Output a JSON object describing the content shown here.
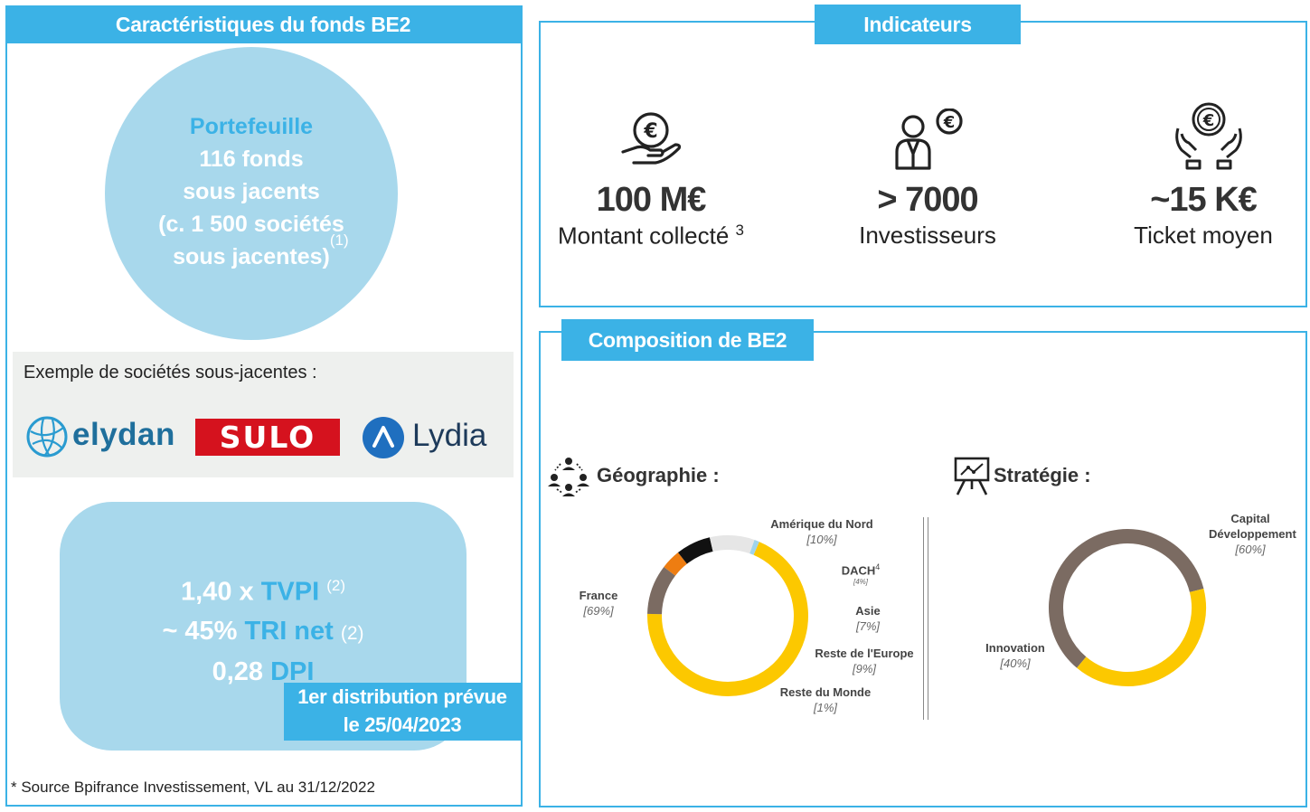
{
  "left": {
    "title": "Caractéristiques du fonds BE2",
    "portfolio": {
      "heading": "Portefeuille",
      "line1": "116 fonds",
      "line2": "sous jacents",
      "line3": "(c. 1 500 sociétés",
      "line4": "sous jacentes)",
      "note": "(1)"
    },
    "examples_label": "Exemple de sociétés sous-jacentes :",
    "logos": [
      "elydan",
      "SULO",
      "Lydia"
    ],
    "metrics": [
      {
        "value": "1,40 x ",
        "name": "TVPI",
        "note": "(2)"
      },
      {
        "value": "~ 45% ",
        "name": "TRI net",
        "note": "(2)"
      },
      {
        "value": "0,28 ",
        "name": "DPI",
        "note": ""
      }
    ],
    "distribution": {
      "line1": "1er distribution prévue",
      "line2": "le 25/04/2023"
    },
    "footnote": "* Source Bpifrance Investissement, VL au 31/12/2022"
  },
  "indicators": {
    "title": "Indicateurs",
    "items": [
      {
        "icon": "euro-hand-icon",
        "value": "100 M€",
        "label": "Montant collecté",
        "note": "3"
      },
      {
        "icon": "investor-euro-icon",
        "value": "> 7000",
        "label": "Investisseurs",
        "note": ""
      },
      {
        "icon": "hands-euro-icon",
        "value": "~15 K€",
        "label": "Ticket moyen",
        "note": ""
      }
    ]
  },
  "composition": {
    "title": "Composition de BE2",
    "geo_title": "Géographie :",
    "strat_title": "Stratégie :"
  },
  "chart_data": [
    {
      "type": "pie",
      "title": "Géographie :",
      "categories": [
        "France",
        "Amérique du Nord",
        "DACH",
        "Asie",
        "Reste de l'Europe",
        "Reste du Monde"
      ],
      "values": [
        69,
        10,
        4,
        7,
        9,
        1
      ],
      "value_labels": [
        "[69%]",
        "[10%]",
        "[4%]",
        "[7%]",
        "[9%]",
        "[1%]"
      ],
      "notes": {
        "DACH": "4"
      },
      "colors": [
        "#fcc800",
        "#7b6b62",
        "#ee7d11",
        "#111111",
        "#e6e6e6",
        "#9fd3ea"
      ]
    },
    {
      "type": "pie",
      "title": "Stratégie :",
      "categories": [
        "Capital Développement",
        "Innovation"
      ],
      "values": [
        60,
        40
      ],
      "value_labels": [
        "[60%]",
        "[40%]"
      ],
      "colors": [
        "#7b6b62",
        "#fcc800"
      ]
    }
  ],
  "colors": {
    "accent": "#3bb2e6",
    "bubble": "#a8d8ec",
    "sulo_red": "#d5121e"
  }
}
